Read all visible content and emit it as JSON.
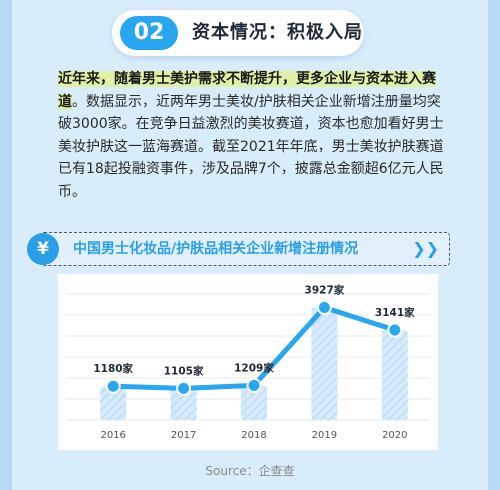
{
  "section": {
    "number": "02",
    "title": "资本情况：积极入局"
  },
  "paragraph": {
    "highlight": "近年来，随着男士美护需求不断提升，更多企业与资本进入赛道",
    "body": "。数据显示，近两年男士美妆/护肤相关企业新增注册量均突破3000家。在竞争日益激烈的美妆赛道，资本也愈加看好男士美妆护肤这一蓝海赛道。截至2021年年底，男士美妆护肤赛道已有18起投融资事件，涉及品牌7个，披露总金额超6亿元人民币。"
  },
  "icons": {
    "badge": "yen-icon",
    "more": "chevron-double-right-icon"
  },
  "colors": {
    "accent": "#2a9fe8",
    "line": "#28a6ef",
    "bar": "#cfe6fa",
    "highlight": "#dff0a8"
  },
  "chart_data": {
    "type": "line",
    "title": "中国男士化妆品/护肤品相关企业新增注册情况",
    "categories": [
      "2016",
      "2017",
      "2018",
      "2019",
      "2020"
    ],
    "values": [
      1180,
      1105,
      1209,
      3927,
      3141
    ],
    "data_labels": [
      "1180家",
      "1105家",
      "1209家",
      "3927家",
      "3141家"
    ],
    "bars_mirror_values": true,
    "ylim": [
      0,
      4400
    ],
    "grid": true,
    "legend": "none"
  },
  "source": "Source：企查查"
}
